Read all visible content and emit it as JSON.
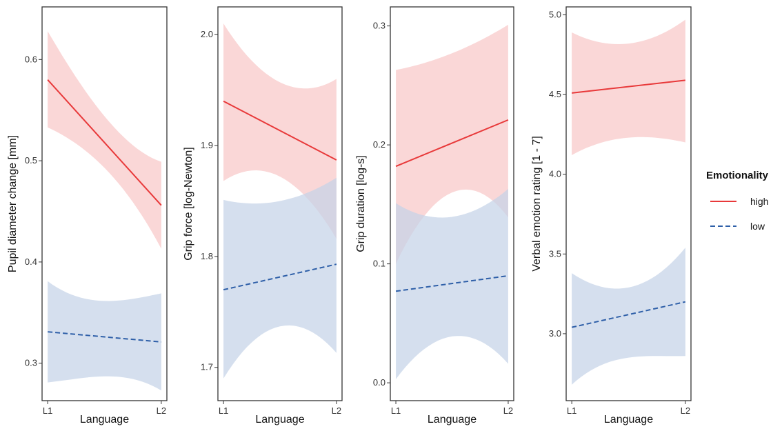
{
  "legend": {
    "title": "Emotionality",
    "items": [
      {
        "key": "high",
        "label": "high",
        "color": "#e8393a",
        "fill": "#f8c8c8",
        "dash": false
      },
      {
        "key": "low",
        "label": "low",
        "color": "#2e5fa8",
        "fill": "#c5d3e8",
        "dash": true
      }
    ]
  },
  "chart_data": [
    {
      "type": "line",
      "categories": [
        "L1",
        "L2"
      ],
      "xlabel": "Language",
      "ylabel": "Pupil diameter change [mm]",
      "ylim": [
        0.263,
        0.652
      ],
      "yticks": [
        0.3,
        0.4,
        0.5,
        0.6
      ],
      "ytick_labels": [
        "0.3",
        "0.4",
        "0.5",
        "0.6"
      ],
      "series": [
        {
          "name": "high",
          "values": [
            0.58,
            0.456
          ],
          "lower": [
            0.533,
            0.413
          ],
          "upper": [
            0.628,
            0.499
          ],
          "band_min": [
            0.55,
            0.436
          ],
          "band_max": [
            0.612,
            0.476
          ]
        },
        {
          "name": "low",
          "values": [
            0.331,
            0.321
          ],
          "lower": [
            0.281,
            0.273
          ],
          "upper": [
            0.381,
            0.369
          ],
          "band_min": [
            0.286,
            0.288
          ],
          "band_max": [
            0.363,
            0.36
          ]
        }
      ]
    },
    {
      "type": "line",
      "categories": [
        "L1",
        "L2"
      ],
      "xlabel": "Language",
      "ylabel": "Grip force [log-Newton]",
      "ylim": [
        1.67,
        2.025
      ],
      "yticks": [
        1.7,
        1.8,
        1.9,
        2.0
      ],
      "ytick_labels": [
        "1.7",
        "1.8",
        "1.9",
        "2.0"
      ],
      "series": [
        {
          "name": "high",
          "values": [
            1.94,
            1.887
          ],
          "lower": [
            1.868,
            1.816
          ],
          "upper": [
            2.01,
            1.96
          ],
          "band_min": [
            1.898,
            1.846
          ],
          "band_max": [
            1.982,
            1.932
          ]
        },
        {
          "name": "low",
          "values": [
            1.77,
            1.793
          ],
          "lower": [
            1.69,
            1.713
          ],
          "upper": [
            1.851,
            1.871
          ],
          "band_min": [
            1.726,
            1.748
          ],
          "band_max": [
            1.84,
            1.86
          ]
        }
      ]
    },
    {
      "type": "line",
      "categories": [
        "L1",
        "L2"
      ],
      "xlabel": "Language",
      "ylabel": "Grip duration [log-s]",
      "ylim": [
        -0.015,
        0.316
      ],
      "yticks": [
        0.0,
        0.1,
        0.2,
        0.3
      ],
      "ytick_labels": [
        "0.0",
        "0.1",
        "0.2",
        "0.3"
      ],
      "series": [
        {
          "name": "high",
          "values": [
            0.182,
            0.221
          ],
          "lower": [
            0.1,
            0.139
          ],
          "upper": [
            0.263,
            0.301
          ],
          "band_min": [
            0.14,
            0.18
          ],
          "band_max": [
            0.258,
            0.296
          ]
        },
        {
          "name": "low",
          "values": [
            0.077,
            0.09
          ],
          "lower": [
            0.003,
            0.016
          ],
          "upper": [
            0.151,
            0.163
          ],
          "band_min": [
            0.032,
            0.046
          ],
          "band_max": [
            0.133,
            0.146
          ]
        }
      ]
    },
    {
      "type": "line",
      "categories": [
        "L1",
        "L2"
      ],
      "xlabel": "Language",
      "ylabel": "Verbal emotion rating [1 - 7]",
      "ylim": [
        2.58,
        5.05
      ],
      "yticks": [
        3.0,
        3.5,
        4.0,
        4.5,
        5.0
      ],
      "ytick_labels": [
        "3.0",
        "3.5",
        "4.0",
        "4.5",
        "5.0"
      ],
      "series": [
        {
          "name": "high",
          "values": [
            4.51,
            4.59
          ],
          "lower": [
            4.12,
            4.2
          ],
          "upper": [
            4.89,
            4.97
          ],
          "band_min": [
            4.2,
            4.26
          ],
          "band_max": [
            4.78,
            4.86
          ]
        },
        {
          "name": "low",
          "values": [
            3.04,
            3.2
          ],
          "lower": [
            2.68,
            2.86
          ],
          "upper": [
            3.38,
            3.54
          ],
          "band_min": [
            2.8,
            2.9
          ],
          "band_max": [
            3.22,
            3.36
          ]
        }
      ]
    }
  ]
}
